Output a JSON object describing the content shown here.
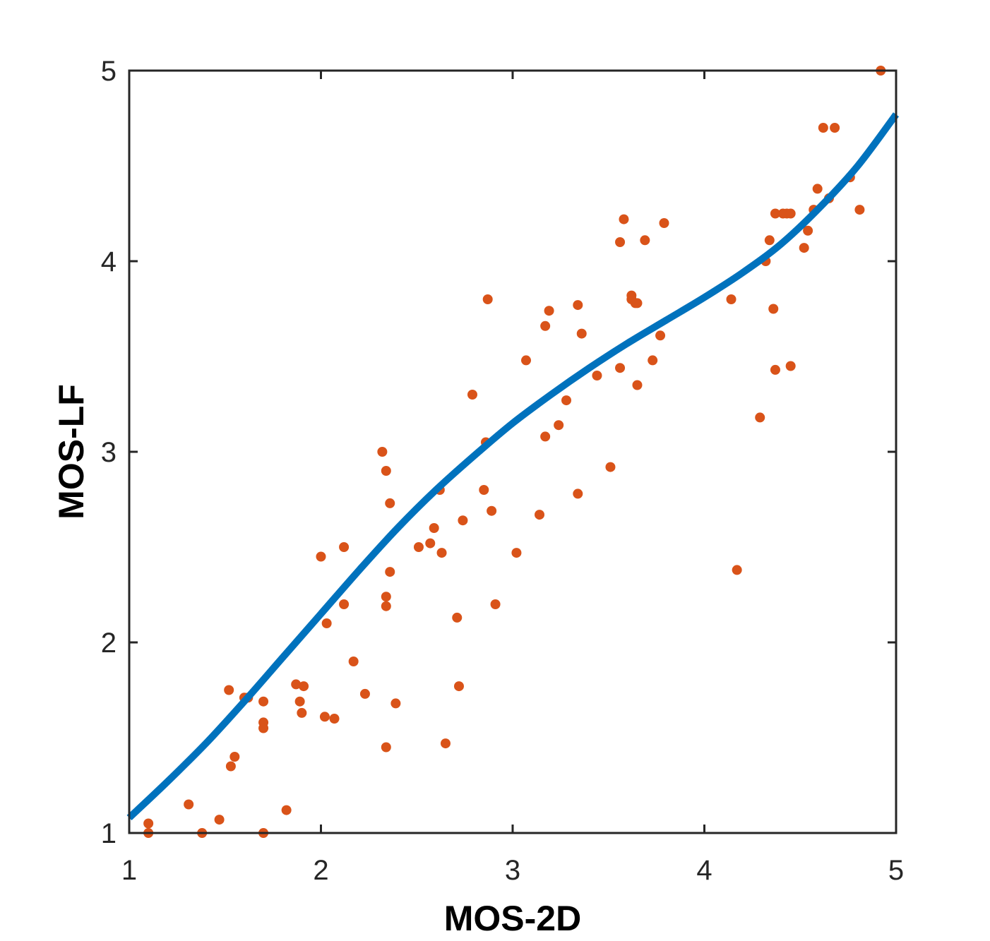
{
  "chart_data": {
    "type": "scatter",
    "title": "",
    "xlabel": "MOS-2D",
    "ylabel": "MOS-LF",
    "xlim": [
      1,
      5
    ],
    "ylim": [
      1,
      5
    ],
    "xticks": [
      "1",
      "2",
      "3",
      "4",
      "5"
    ],
    "yticks": [
      "1",
      "2",
      "3",
      "4",
      "5"
    ],
    "grid": false,
    "legend": "none",
    "colors": {
      "points": "#D95319",
      "fit": "#0072BD",
      "axes": "#262626"
    },
    "points": [
      [
        1.1,
        1.05
      ],
      [
        1.1,
        1.0
      ],
      [
        1.31,
        1.15
      ],
      [
        1.38,
        1.0
      ],
      [
        1.47,
        1.07
      ],
      [
        1.52,
        1.75
      ],
      [
        1.53,
        1.35
      ],
      [
        1.55,
        1.4
      ],
      [
        1.6,
        1.71
      ],
      [
        1.62,
        1.71
      ],
      [
        1.7,
        1.69
      ],
      [
        1.7,
        1.58
      ],
      [
        1.7,
        1.55
      ],
      [
        1.7,
        1.0
      ],
      [
        1.82,
        1.12
      ],
      [
        1.87,
        1.78
      ],
      [
        1.89,
        1.69
      ],
      [
        1.9,
        1.63
      ],
      [
        1.91,
        1.77
      ],
      [
        2.0,
        2.45
      ],
      [
        2.02,
        1.61
      ],
      [
        2.03,
        2.1
      ],
      [
        2.07,
        1.6
      ],
      [
        2.12,
        2.5
      ],
      [
        2.12,
        2.2
      ],
      [
        2.17,
        1.9
      ],
      [
        2.23,
        1.73
      ],
      [
        2.32,
        3.0
      ],
      [
        2.34,
        2.9
      ],
      [
        2.34,
        2.24
      ],
      [
        2.34,
        2.19
      ],
      [
        2.34,
        1.45
      ],
      [
        2.36,
        2.73
      ],
      [
        2.36,
        2.37
      ],
      [
        2.39,
        1.68
      ],
      [
        2.51,
        2.5
      ],
      [
        2.57,
        2.52
      ],
      [
        2.59,
        2.6
      ],
      [
        2.62,
        2.8
      ],
      [
        2.63,
        2.47
      ],
      [
        2.65,
        1.47
      ],
      [
        2.71,
        2.13
      ],
      [
        2.72,
        1.77
      ],
      [
        2.74,
        2.64
      ],
      [
        2.79,
        3.3
      ],
      [
        2.85,
        2.8
      ],
      [
        2.86,
        3.05
      ],
      [
        2.87,
        3.8
      ],
      [
        2.89,
        2.69
      ],
      [
        2.91,
        2.2
      ],
      [
        3.02,
        2.47
      ],
      [
        3.07,
        3.48
      ],
      [
        3.14,
        2.67
      ],
      [
        3.17,
        3.66
      ],
      [
        3.17,
        3.08
      ],
      [
        3.19,
        3.74
      ],
      [
        3.24,
        3.14
      ],
      [
        3.28,
        3.27
      ],
      [
        3.34,
        3.77
      ],
      [
        3.34,
        2.78
      ],
      [
        3.36,
        3.62
      ],
      [
        3.44,
        3.4
      ],
      [
        3.51,
        2.92
      ],
      [
        3.56,
        4.1
      ],
      [
        3.56,
        3.44
      ],
      [
        3.58,
        4.22
      ],
      [
        3.62,
        3.82
      ],
      [
        3.62,
        3.8
      ],
      [
        3.64,
        3.78
      ],
      [
        3.65,
        3.78
      ],
      [
        3.65,
        3.35
      ],
      [
        3.69,
        4.11
      ],
      [
        3.73,
        3.48
      ],
      [
        3.77,
        3.61
      ],
      [
        3.79,
        4.2
      ],
      [
        4.14,
        3.8
      ],
      [
        4.17,
        2.38
      ],
      [
        4.29,
        3.18
      ],
      [
        4.32,
        4.0
      ],
      [
        4.34,
        4.11
      ],
      [
        4.36,
        3.75
      ],
      [
        4.37,
        4.25
      ],
      [
        4.37,
        3.43
      ],
      [
        4.41,
        4.25
      ],
      [
        4.43,
        4.25
      ],
      [
        4.45,
        4.25
      ],
      [
        4.45,
        3.45
      ],
      [
        4.52,
        4.07
      ],
      [
        4.54,
        4.16
      ],
      [
        4.57,
        4.27
      ],
      [
        4.59,
        4.38
      ],
      [
        4.62,
        4.7
      ],
      [
        4.65,
        4.33
      ],
      [
        4.68,
        4.7
      ],
      [
        4.76,
        4.44
      ],
      [
        4.81,
        4.27
      ],
      [
        4.92,
        5.0
      ]
    ],
    "fit_curve": {
      "x": [
        1.0,
        1.2,
        1.4,
        1.6,
        1.8,
        2.0,
        2.2,
        2.4,
        2.6,
        2.8,
        3.0,
        3.2,
        3.4,
        3.6,
        3.8,
        4.0,
        4.2,
        4.4,
        4.6,
        4.8,
        5.0
      ],
      "y": [
        1.08,
        1.27,
        1.47,
        1.69,
        1.92,
        2.15,
        2.38,
        2.6,
        2.8,
        2.98,
        3.15,
        3.3,
        3.44,
        3.57,
        3.69,
        3.81,
        3.94,
        4.09,
        4.28,
        4.5,
        4.77
      ]
    }
  }
}
